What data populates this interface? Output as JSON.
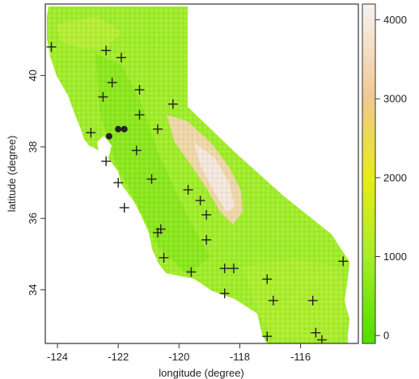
{
  "chart_data": {
    "type": "heatmap",
    "title": "",
    "xlabel": "longitude (degree)",
    "ylabel": "latitude (degree)",
    "xlim": [
      -124.4,
      -114.1
    ],
    "ylim": [
      32.5,
      42.0
    ],
    "x_ticks": [
      -124,
      -122,
      -120,
      -118,
      -116
    ],
    "y_ticks": [
      34,
      36,
      38,
      40
    ],
    "x_tick_labels": [
      "-124",
      "-122",
      "-120",
      "-118",
      "-116"
    ],
    "y_tick_labels": [
      "34",
      "36",
      "38",
      "40"
    ],
    "colorbar": {
      "min": -100,
      "max": 4200,
      "ticks": [
        0,
        1000,
        2000,
        3000,
        4000
      ],
      "tick_labels": [
        "0",
        "1000",
        "2000",
        "3000",
        "4000"
      ],
      "stops": [
        {
          "value": 0,
          "color": "#55e000"
        },
        {
          "value": 1000,
          "color": "#a6ee26"
        },
        {
          "value": 2000,
          "color": "#e8ec16"
        },
        {
          "value": 3000,
          "color": "#f0c890"
        },
        {
          "value": 4200,
          "color": "#f6f2f2"
        }
      ]
    },
    "colors": {
      "land_base": "#a0ec2a",
      "land_low": "#78e410",
      "sierra": "#eed6a8",
      "sierra_peak": "#f4e6dc",
      "marker": "#222222",
      "frame": "#333333"
    },
    "stations_plus": [
      [
        -124.2,
        40.8
      ],
      [
        -122.4,
        40.7
      ],
      [
        -121.9,
        40.5
      ],
      [
        -122.2,
        39.8
      ],
      [
        -122.5,
        39.4
      ],
      [
        -121.3,
        39.6
      ],
      [
        -120.2,
        39.2
      ],
      [
        -121.3,
        38.9
      ],
      [
        -120.7,
        38.5
      ],
      [
        -122.9,
        38.4
      ],
      [
        -121.4,
        37.9
      ],
      [
        -122.4,
        37.6
      ],
      [
        -122.0,
        37.0
      ],
      [
        -120.9,
        37.1
      ],
      [
        -119.7,
        36.8
      ],
      [
        -119.3,
        36.5
      ],
      [
        -119.1,
        36.1
      ],
      [
        -121.8,
        36.3
      ],
      [
        -120.6,
        35.7
      ],
      [
        -120.7,
        35.6
      ],
      [
        -119.1,
        35.4
      ],
      [
        -120.5,
        34.9
      ],
      [
        -119.6,
        34.5
      ],
      [
        -118.5,
        34.6
      ],
      [
        -118.2,
        34.6
      ],
      [
        -117.1,
        34.3
      ],
      [
        -114.6,
        34.8
      ],
      [
        -118.5,
        33.9
      ],
      [
        -116.9,
        33.7
      ],
      [
        -115.6,
        33.7
      ],
      [
        -117.1,
        32.7
      ],
      [
        -115.5,
        32.8
      ],
      [
        -115.3,
        32.6
      ]
    ],
    "stations_dot": [
      [
        -122.3,
        38.3
      ],
      [
        -122.0,
        38.5
      ],
      [
        -121.8,
        38.5
      ]
    ]
  }
}
